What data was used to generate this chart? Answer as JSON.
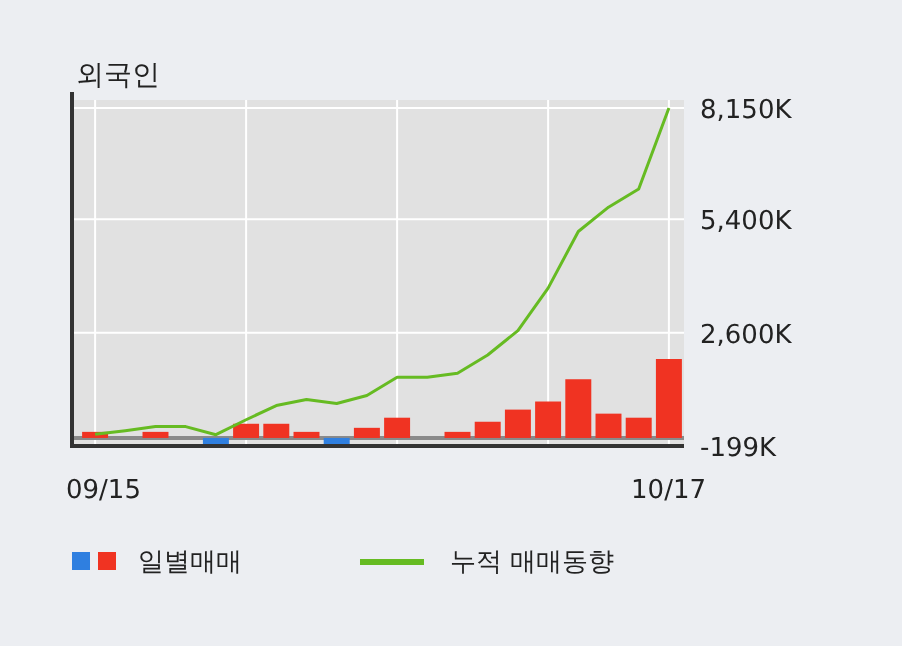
{
  "chart_data": {
    "type": "bar",
    "title": "외국인",
    "categories": [
      "09/15",
      null,
      null,
      null,
      null,
      null,
      null,
      null,
      null,
      null,
      null,
      null,
      null,
      null,
      null,
      null,
      null,
      null,
      null,
      "10/17"
    ],
    "series": [
      {
        "name": "일별매매",
        "colors": [
          "#f03322",
          "#f03322",
          "#f03322",
          "#f03322",
          "#2f7fe0",
          "#f03322",
          "#f03322",
          "#f03322",
          "#2f7fe0",
          "#f03322",
          "#f03322",
          "#f03322",
          "#f03322",
          "#f03322",
          "#f03322",
          "#f03322",
          "#f03322",
          "#f03322",
          "#f03322",
          "#f03322"
        ],
        "values": [
          150,
          0,
          150,
          0,
          -190,
          350,
          350,
          150,
          -150,
          250,
          500,
          0,
          150,
          400,
          700,
          900,
          1450,
          600,
          500,
          1950
        ]
      },
      {
        "name": "누적 매매동향",
        "type": "line",
        "color": "#66bb22",
        "values": [
          90,
          180,
          280,
          280,
          80,
          450,
          800,
          950,
          850,
          1050,
          1500,
          1500,
          1600,
          2050,
          2650,
          3700,
          5100,
          5700,
          6150,
          8150
        ]
      }
    ],
    "ylim": [
      -199,
      8150
    ],
    "yticks": [
      {
        "value": 8150,
        "label": "8,150K"
      },
      {
        "value": 5400,
        "label": "5,400K"
      },
      {
        "value": 2600,
        "label": "2,600K"
      },
      {
        "value": -199,
        "label": "-199K"
      }
    ],
    "grid": true,
    "legend": "bottom"
  }
}
